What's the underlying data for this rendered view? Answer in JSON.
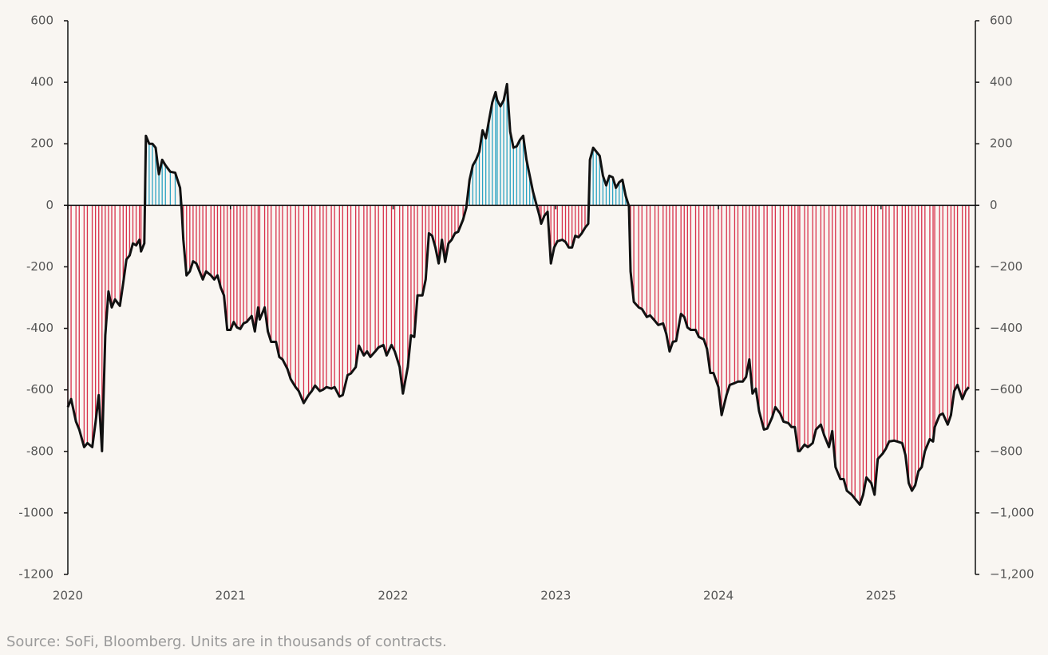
{
  "chart_data": {
    "type": "bar",
    "note": "Source: SoFi, Bloomberg. Units are in thousands of contracts.",
    "x": [
      2020.0,
      2020.02,
      2020.05,
      2020.07,
      2020.1,
      2020.12,
      2020.15,
      2020.17,
      2020.19,
      2020.21,
      2020.23,
      2020.25,
      2020.27,
      2020.29,
      2020.32,
      2020.34,
      2020.36,
      2020.38,
      2020.4,
      2020.42,
      2020.44,
      2020.45,
      2020.47,
      2020.48,
      2020.5,
      2020.52,
      2020.54,
      2020.56,
      2020.58,
      2020.6,
      2020.63,
      2020.66,
      2020.69,
      2020.7,
      2020.71,
      2020.73,
      2020.75,
      2020.77,
      2020.79,
      2020.81,
      2020.83,
      2020.85,
      2020.88,
      2020.9,
      2020.92,
      2020.94,
      2020.96,
      2020.98,
      2021.0,
      2021.02,
      2021.04,
      2021.06,
      2021.08,
      2021.1,
      2021.13,
      2021.15,
      2021.17,
      2021.18,
      2021.21,
      2021.23,
      2021.25,
      2021.28,
      2021.3,
      2021.32,
      2021.35,
      2021.37,
      2021.4,
      2021.42,
      2021.45,
      2021.48,
      2021.5,
      2021.52,
      2021.55,
      2021.57,
      2021.59,
      2021.62,
      2021.64,
      2021.67,
      2021.69,
      2021.72,
      2021.74,
      2021.77,
      2021.79,
      2021.82,
      2021.84,
      2021.86,
      2021.89,
      2021.91,
      2021.94,
      2021.96,
      2021.99,
      2022.01,
      2022.04,
      2022.06,
      2022.09,
      2022.11,
      2022.13,
      2022.15,
      2022.18,
      2022.2,
      2022.22,
      2022.24,
      2022.26,
      2022.28,
      2022.3,
      2022.32,
      2022.34,
      2022.36,
      2022.38,
      2022.4,
      2022.43,
      2022.45,
      2022.47,
      2022.49,
      2022.51,
      2022.53,
      2022.55,
      2022.57,
      2022.59,
      2022.61,
      2022.63,
      2022.64,
      2022.66,
      2022.68,
      2022.7,
      2022.72,
      2022.74,
      2022.76,
      2022.78,
      2022.8,
      2022.82,
      2022.84,
      2022.86,
      2022.88,
      2022.9,
      2022.91,
      2022.93,
      2022.95,
      2022.97,
      2022.99,
      2023.01,
      2023.04,
      2023.06,
      2023.08,
      2023.1,
      2023.12,
      2023.14,
      2023.16,
      2023.18,
      2023.2,
      2023.21,
      2023.23,
      2023.25,
      2023.27,
      2023.29,
      2023.31,
      2023.33,
      2023.35,
      2023.37,
      2023.39,
      2023.41,
      2023.43,
      2023.45,
      2023.46,
      2023.48,
      2023.51,
      2023.53,
      2023.56,
      2023.58,
      2023.61,
      2023.63,
      2023.66,
      2023.68,
      2023.7,
      2023.72,
      2023.74,
      2023.77,
      2023.79,
      2023.81,
      2023.83,
      2023.86,
      2023.88,
      2023.91,
      2023.93,
      2023.95,
      2023.97,
      2024.0,
      2024.02,
      2024.05,
      2024.07,
      2024.1,
      2024.12,
      2024.15,
      2024.17,
      2024.19,
      2024.21,
      2024.23,
      2024.25,
      2024.28,
      2024.3,
      2024.33,
      2024.35,
      2024.38,
      2024.4,
      2024.43,
      2024.45,
      2024.47,
      2024.49,
      2024.5,
      2024.53,
      2024.55,
      2024.58,
      2024.6,
      2024.63,
      2024.65,
      2024.68,
      2024.7,
      2024.72,
      2024.75,
      2024.77,
      2024.79,
      2024.82,
      2024.84,
      2024.87,
      2024.89,
      2024.91,
      2024.94,
      2024.96,
      2024.98,
      2025.01,
      2025.03,
      2025.05,
      2025.08,
      2025.1,
      2025.13,
      2025.15,
      2025.17,
      2025.19,
      2025.21,
      2025.23,
      2025.25,
      2025.27,
      2025.3,
      2025.32,
      2025.33,
      2025.36,
      2025.38,
      2025.41,
      2025.43,
      2025.45,
      2025.47,
      2025.5,
      2025.52,
      2025.54
    ],
    "values": [
      -656,
      -630,
      -703,
      -729,
      -786,
      -773,
      -786,
      -708,
      -617,
      -799,
      -423,
      -280,
      -332,
      -306,
      -327,
      -254,
      -176,
      -163,
      -124,
      -130,
      -112,
      -150,
      -124,
      226,
      200,
      200,
      187,
      101,
      148,
      130,
      109,
      106,
      57,
      -13,
      -112,
      -228,
      -215,
      -182,
      -189,
      -215,
      -241,
      -215,
      -228,
      -241,
      -228,
      -267,
      -293,
      -405,
      -405,
      -379,
      -397,
      -402,
      -384,
      -379,
      -360,
      -410,
      -332,
      -371,
      -332,
      -410,
      -444,
      -444,
      -493,
      -501,
      -532,
      -565,
      -591,
      -604,
      -643,
      -617,
      -604,
      -586,
      -604,
      -599,
      -591,
      -596,
      -591,
      -622,
      -617,
      -552,
      -547,
      -526,
      -456,
      -488,
      -475,
      -493,
      -475,
      -462,
      -454,
      -488,
      -454,
      -475,
      -526,
      -612,
      -526,
      -423,
      -428,
      -293,
      -293,
      -241,
      -91,
      -99,
      -137,
      -189,
      -112,
      -184,
      -124,
      -112,
      -91,
      -86,
      -47,
      -8,
      83,
      130,
      148,
      174,
      244,
      218,
      277,
      335,
      368,
      342,
      322,
      342,
      394,
      239,
      187,
      192,
      213,
      226,
      148,
      96,
      44,
      5,
      -34,
      -60,
      -34,
      -21,
      -189,
      -137,
      -117,
      -112,
      -119,
      -137,
      -137,
      -99,
      -104,
      -91,
      -73,
      -60,
      148,
      187,
      174,
      161,
      96,
      65,
      96,
      91,
      57,
      75,
      83,
      31,
      -3,
      -215,
      -314,
      -332,
      -337,
      -363,
      -358,
      -376,
      -389,
      -384,
      -418,
      -475,
      -444,
      -441,
      -353,
      -363,
      -397,
      -405,
      -405,
      -428,
      -436,
      -467,
      -545,
      -545,
      -591,
      -682,
      -617,
      -584,
      -578,
      -573,
      -573,
      -558,
      -501,
      -612,
      -596,
      -669,
      -729,
      -726,
      -690,
      -656,
      -677,
      -703,
      -708,
      -721,
      -721,
      -799,
      -799,
      -778,
      -786,
      -773,
      -729,
      -713,
      -747,
      -786,
      -734,
      -851,
      -890,
      -890,
      -928,
      -941,
      -954,
      -973,
      -941,
      -885,
      -903,
      -941,
      -825,
      -807,
      -791,
      -768,
      -765,
      -768,
      -773,
      -812,
      -903,
      -928,
      -910,
      -864,
      -851,
      -799,
      -760,
      -768,
      -721,
      -682,
      -677,
      -713,
      -682,
      -604,
      -584,
      -630,
      -604,
      -591
    ],
    "positive_color": "#2ba3c2",
    "negative_color": "#d8324c",
    "line_color": "#111111",
    "xlim": [
      2020,
      2025.58
    ],
    "xticks": [
      2020,
      2021,
      2022,
      2023,
      2024,
      2025
    ],
    "ylim": [
      -1200,
      600
    ],
    "yticks": [
      -1200,
      -1000,
      -800,
      -600,
      -400,
      -200,
      0,
      200,
      400,
      600
    ],
    "y2lim": [
      -1200,
      600
    ],
    "y2ticks": [
      {
        "value": -1200,
        "label": "−1,200"
      },
      {
        "value": -1000,
        "label": "−1,000"
      },
      {
        "value": -800,
        "label": "−800"
      },
      {
        "value": -600,
        "label": "−600"
      },
      {
        "value": -400,
        "label": "−400"
      },
      {
        "value": -200,
        "label": "−200"
      },
      0,
      200,
      400,
      600
    ]
  }
}
